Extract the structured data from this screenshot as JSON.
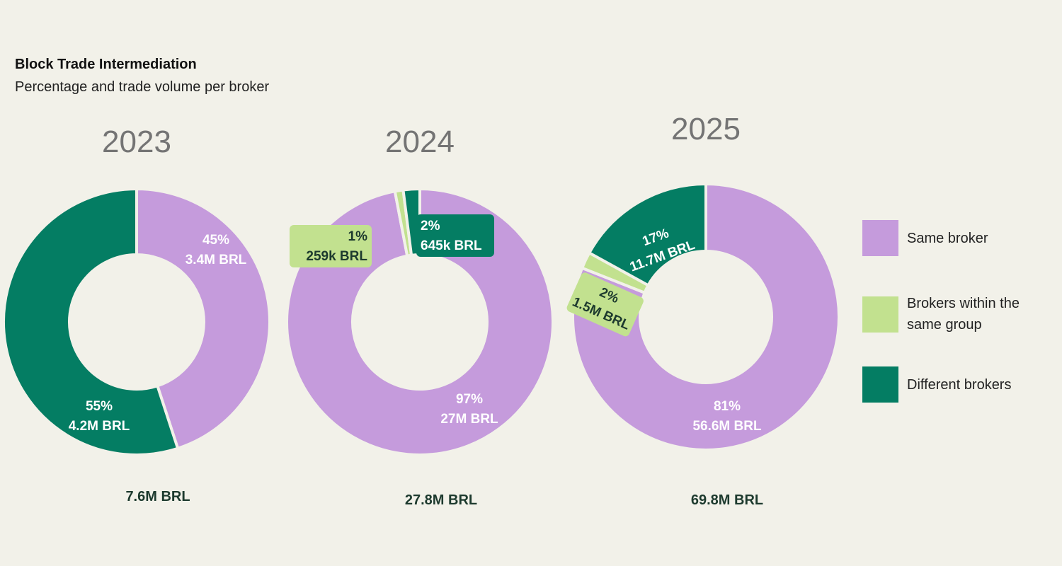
{
  "title": "Block Trade Intermediation",
  "subtitle": "Percentage and trade volume per broker",
  "colors": {
    "same_broker": "#c59bdc",
    "same_group": "#c2e18f",
    "different": "#047d63",
    "background": "#f2f1e9",
    "label_dark": "#1d3a2e",
    "year_text": "#747474"
  },
  "legend": [
    {
      "label": "Same broker",
      "color": "#c59bdc"
    },
    {
      "label": "Brokers within the same group",
      "color": "#c2e18f"
    },
    {
      "label": "Different brokers",
      "color": "#047d63"
    }
  ],
  "chart_data": [
    {
      "type": "pie",
      "title": "2023",
      "total": "7.6M BRL",
      "slices": [
        {
          "series": "Same broker",
          "percent": 45,
          "pct_label": "45%",
          "value_label": "3.4M BRL"
        },
        {
          "series": "Brokers within the same group",
          "percent": 0,
          "pct_label": "",
          "value_label": ""
        },
        {
          "series": "Different brokers",
          "percent": 55,
          "pct_label": "55%",
          "value_label": "4.2M BRL"
        }
      ]
    },
    {
      "type": "pie",
      "title": "2024",
      "total": "27.8M BRL",
      "slices": [
        {
          "series": "Same broker",
          "percent": 97,
          "pct_label": "97%",
          "value_label": "27M BRL"
        },
        {
          "series": "Brokers within the same group",
          "percent": 1,
          "pct_label": "1%",
          "value_label": "259k BRL"
        },
        {
          "series": "Different brokers",
          "percent": 2,
          "pct_label": "2%",
          "value_label": "645k BRL"
        }
      ]
    },
    {
      "type": "pie",
      "title": "2025",
      "total": "69.8M BRL",
      "slices": [
        {
          "series": "Same broker",
          "percent": 81,
          "pct_label": "81%",
          "value_label": "56.6M BRL"
        },
        {
          "series": "Brokers within the same group",
          "percent": 2,
          "pct_label": "2%",
          "value_label": "1.5M BRL"
        },
        {
          "series": "Different brokers",
          "percent": 17,
          "pct_label": "17%",
          "value_label": "11.7M BRL"
        }
      ]
    }
  ]
}
